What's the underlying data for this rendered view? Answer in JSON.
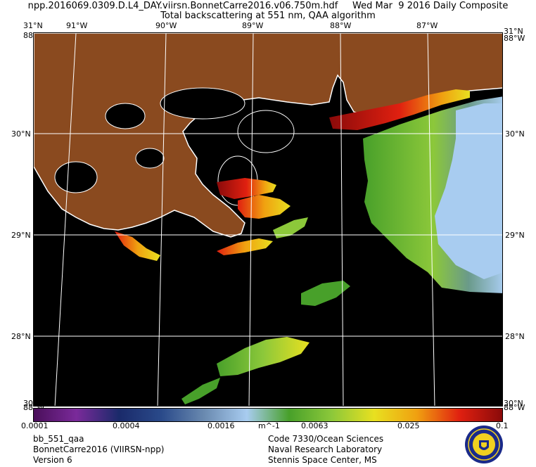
{
  "header": {
    "line1": "npp.2016069.0309.D.L4_DAY.viirsn.BonnetCarre2016.v06.750m.hdf     Wed Mar  9 2016 Daily Composite",
    "line2": "Total backscattering at 551 nm, QAA algorithm"
  },
  "map": {
    "top_lon_labels": [
      "91°W",
      "90°W",
      "89°W",
      "88°W",
      "87°W"
    ],
    "right_lat_labels": [
      "30°N",
      "29°N",
      "28°N"
    ],
    "left_lat_labels": [
      "31°N",
      "30°N",
      "29°N",
      "28°N"
    ],
    "corner_labels": {
      "top_left_lat": "31°N",
      "top_left_lon": "88°W",
      "top_right_lat": "31°N",
      "top_right_lon": "88°W",
      "bottom_left_lat": "30°N",
      "bottom_left_lon": "88°W",
      "bottom_right_lat": "30°N",
      "bottom_right_lon": "88°W"
    },
    "colors": {
      "land": "#8a4a1f",
      "water_no_data": "#000000",
      "coastline": "#ffffff",
      "graticule": "#ffffff"
    }
  },
  "colorbar": {
    "ticks": [
      "0.0001",
      "0.0004",
      "0.0016",
      "0.0063",
      "0.025",
      "0.1"
    ],
    "units": "m^-1",
    "colors": [
      "#4a0f5a",
      "#7a2a9a",
      "#1a2a6a",
      "#2a4a8a",
      "#6a8ab0",
      "#a8ccf0",
      "#48a02a",
      "#8cc83a",
      "#e8e020",
      "#f0a010",
      "#e02010",
      "#8a0a0a"
    ]
  },
  "footer": {
    "left": [
      "bb_551_qaa",
      "BonnetCarre2016 (VIIRSN-npp)",
      "Version 6"
    ],
    "center": [
      "Code 7330/Ocean Sciences",
      "Naval Research Laboratory",
      "Stennis Space Center, MS"
    ]
  },
  "logo": {
    "name": "nrl-seal",
    "colors": [
      "#1a2a8a",
      "#f0d020"
    ]
  }
}
